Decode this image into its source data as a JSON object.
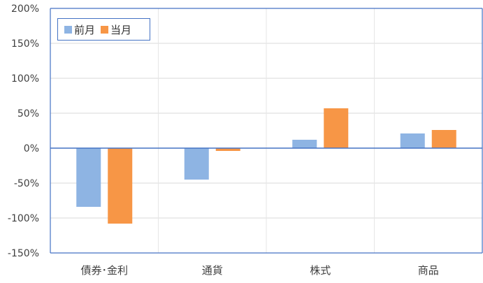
{
  "chart_data": {
    "type": "bar",
    "categories": [
      "債券･金利",
      "通貨",
      "株式",
      "商品"
    ],
    "series": [
      {
        "name": "前月",
        "values": [
          -84,
          -45,
          12,
          21
        ],
        "color": "#8eb4e3"
      },
      {
        "name": "当月",
        "values": [
          -108,
          -4,
          57,
          26
        ],
        "color": "#f79646"
      }
    ],
    "y_ticks": [
      "200%",
      "150%",
      "100%",
      "50%",
      "0%",
      "-50%",
      "-100%",
      "-150%"
    ],
    "ylim": [
      -150,
      200
    ],
    "grid": true,
    "legend_position": "top-left"
  }
}
